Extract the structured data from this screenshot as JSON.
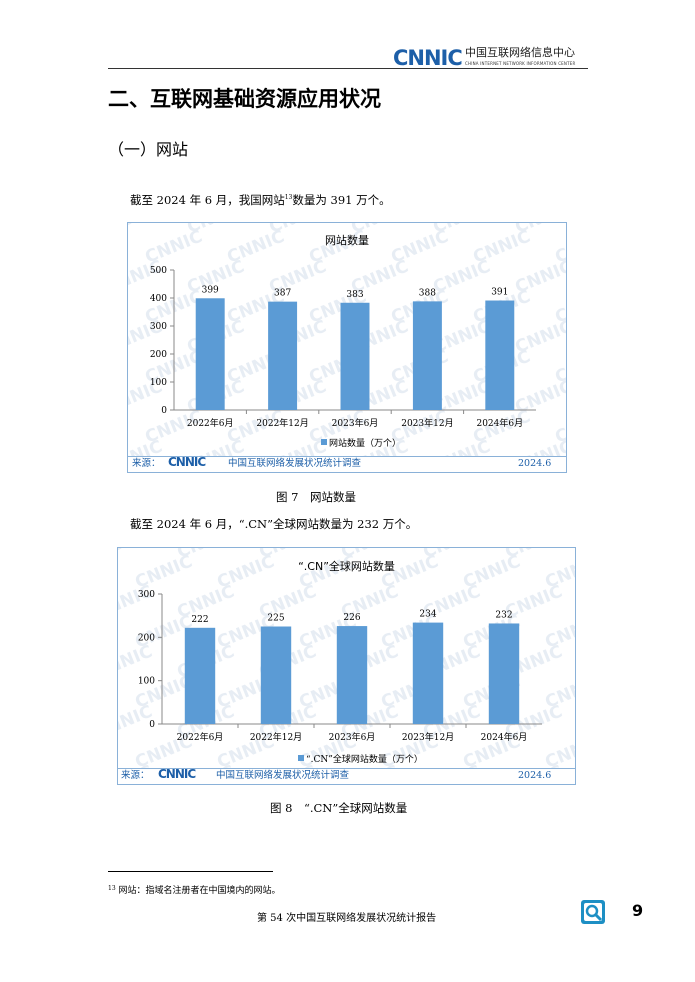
{
  "header": {
    "logo_text": "CNNIC",
    "org_cn": "中国互联网络信息中心",
    "org_en": "CHINA INTERNET NETWORK INFORMATION CENTER"
  },
  "section_title": "二、互联网基础资源应用状况",
  "subsection_title": "（一）网站",
  "para1": {
    "pre": "截至 2024 年 6 月，我国网站",
    "sup": "13",
    "post": "数量为 391 万个。"
  },
  "para2": "截至 2024 年 6 月，“.CN”全球网站数量为 232 万个。",
  "source": {
    "prefix": "来源：",
    "logo": "CNNIC",
    "name": "中国互联网络发展状况统计调查",
    "date": "2024.6"
  },
  "figure_captions": [
    "图 7　网站数量",
    "图 8　“.CN”全球网站数量"
  ],
  "footnote": {
    "num": "13",
    "text": "网站：指域名注册者在中国境内的网站。"
  },
  "footer": {
    "report": "第 54 次中国互联网络发展状况统计报告",
    "page": "9"
  },
  "colors": {
    "bar": "#5b9bd5",
    "brand": "#1d5fa8",
    "frame": "#8ab1d8"
  },
  "chart_data": [
    {
      "type": "bar",
      "title": "网站数量",
      "categories": [
        "2022年6月",
        "2022年12月",
        "2023年6月",
        "2023年12月",
        "2024年6月"
      ],
      "series": [
        {
          "name": "网站数量（万个）",
          "values": [
            399,
            387,
            383,
            388,
            391
          ]
        }
      ],
      "ylim": [
        0,
        500
      ],
      "yticks": [
        0,
        100,
        200,
        300,
        400,
        500
      ],
      "grid": false,
      "legend": "bottom"
    },
    {
      "type": "bar",
      "title": "“.CN”全球网站数量",
      "categories": [
        "2022年6月",
        "2022年12月",
        "2023年6月",
        "2023年12月",
        "2024年6月"
      ],
      "series": [
        {
          "name": "“.CN”全球网站数量（万个）",
          "values": [
            222,
            225,
            226,
            234,
            232
          ]
        }
      ],
      "ylim": [
        0,
        300
      ],
      "yticks": [
        0,
        100,
        200,
        300
      ],
      "grid": false,
      "legend": "bottom"
    }
  ]
}
